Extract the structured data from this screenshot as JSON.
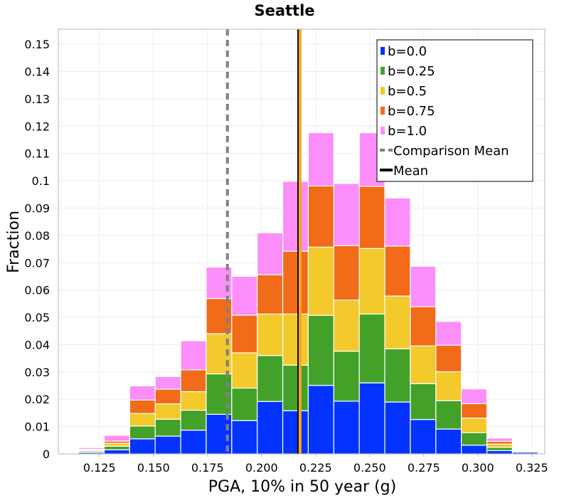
{
  "chart_data": {
    "type": "bar",
    "stacked": true,
    "title": "Seattle",
    "xlabel": "PGA, 10% in 50 year (g)",
    "ylabel": "Fraction",
    "xlim": [
      0.106,
      0.331
    ],
    "ylim": [
      0,
      0.1555
    ],
    "x_ticks": [
      "0.125",
      "0.150",
      "0.175",
      "0.200",
      "0.225",
      "0.250",
      "0.275",
      "0.300",
      "0.325"
    ],
    "y_ticks": [
      "0",
      "0.01",
      "0.02",
      "0.03",
      "0.04",
      "0.05",
      "0.06",
      "0.07",
      "0.08",
      "0.09",
      "0.1",
      "0.11",
      "0.12",
      "0.13",
      "0.14",
      "0.15"
    ],
    "bin_width": 0.0118,
    "bin_centers": [
      0.1213,
      0.1331,
      0.1449,
      0.1567,
      0.1685,
      0.1803,
      0.1921,
      0.2039,
      0.2157,
      0.2275,
      0.2393,
      0.2511,
      0.2629,
      0.2747,
      0.2865,
      0.2983,
      0.3101,
      0.3219
    ],
    "series": [
      {
        "name": "b=0.0",
        "color": "#0433ff",
        "values": [
          0.0005,
          0.0015,
          0.0055,
          0.0065,
          0.0087,
          0.0145,
          0.0122,
          0.0192,
          0.0158,
          0.0251,
          0.0193,
          0.026,
          0.019,
          0.0126,
          0.0091,
          0.0032,
          0.0012,
          0.0006
        ]
      },
      {
        "name": "b=0.25",
        "color": "#43a12a",
        "values": [
          0.0005,
          0.0013,
          0.0047,
          0.0062,
          0.0073,
          0.0148,
          0.0119,
          0.0168,
          0.0167,
          0.0256,
          0.0183,
          0.0252,
          0.0195,
          0.0131,
          0.0104,
          0.0046,
          0.0012,
          0.0004
        ]
      },
      {
        "name": "b=0.5",
        "color": "#f3c92b",
        "values": [
          0.0004,
          0.0011,
          0.0046,
          0.0056,
          0.0068,
          0.0147,
          0.0129,
          0.0152,
          0.0187,
          0.025,
          0.0187,
          0.024,
          0.0193,
          0.0138,
          0.0106,
          0.0053,
          0.0012,
          0.0003
        ]
      },
      {
        "name": "b=0.75",
        "color": "#f26b18",
        "values": [
          0.0003,
          0.0008,
          0.0049,
          0.0054,
          0.008,
          0.0129,
          0.0138,
          0.0144,
          0.023,
          0.0224,
          0.02,
          0.0228,
          0.0183,
          0.0144,
          0.0097,
          0.0053,
          0.001,
          0.0002
        ]
      },
      {
        "name": "b=1.0",
        "color": "#fb8ef9",
        "values": [
          0.0006,
          0.0021,
          0.0052,
          0.0046,
          0.0106,
          0.0115,
          0.0142,
          0.0153,
          0.0256,
          0.0195,
          0.0227,
          0.0196,
          0.0176,
          0.0148,
          0.0087,
          0.0054,
          0.0012,
          0.0003
        ]
      }
    ],
    "lines": [
      {
        "name": "Comparison Mean",
        "x": 0.1842,
        "style": "dashed",
        "color": "#808080"
      },
      {
        "name": "Mean",
        "x": 0.2172,
        "style": "solid",
        "color": "#000000"
      },
      {
        "name": "",
        "x": 0.2178,
        "style": "solid",
        "color": "#f5a623"
      }
    ],
    "legend": {
      "position": "top-right",
      "entries": [
        {
          "label": "b=0.0",
          "kind": "patch",
          "color": "#0433ff"
        },
        {
          "label": "b=0.25",
          "kind": "patch",
          "color": "#43a12a"
        },
        {
          "label": "b=0.5",
          "kind": "patch",
          "color": "#f3c92b"
        },
        {
          "label": "b=0.75",
          "kind": "patch",
          "color": "#f26b18"
        },
        {
          "label": "b=1.0",
          "kind": "patch",
          "color": "#fb8ef9"
        },
        {
          "label": "Comparison Mean",
          "kind": "dashed",
          "color": "#808080"
        },
        {
          "label": "Mean",
          "kind": "solid",
          "color": "#000000"
        }
      ]
    },
    "grid": true
  }
}
